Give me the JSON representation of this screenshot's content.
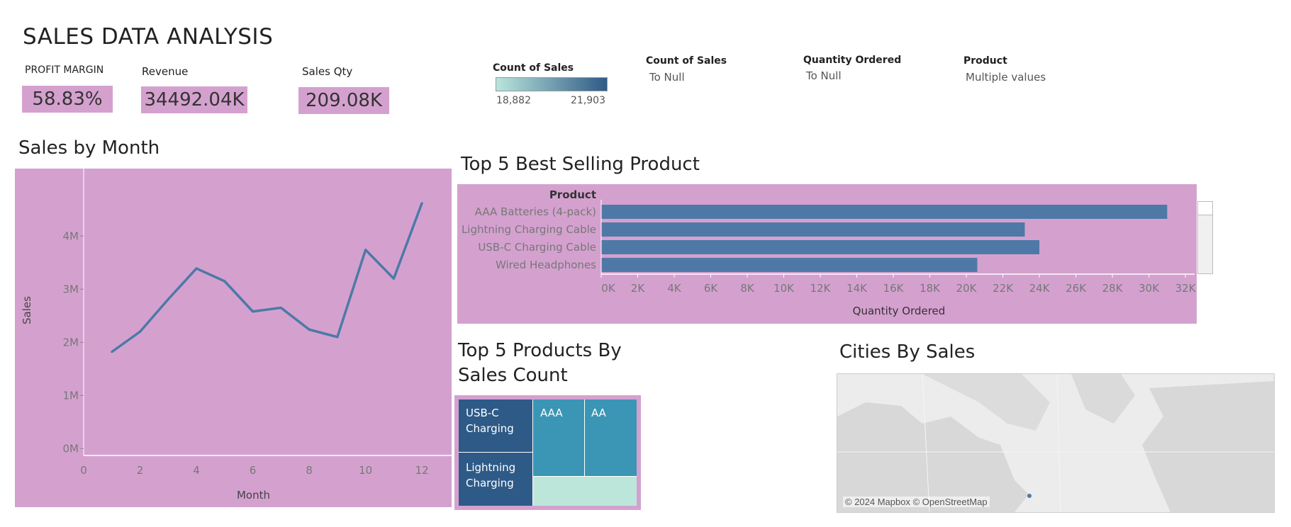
{
  "header": {
    "title": "SALES DATA ANALYSIS"
  },
  "kpis": {
    "profit_margin": {
      "label": "PROFIT MARGIN",
      "value": "58.83%"
    },
    "revenue": {
      "label": "Revenue",
      "value": "34492.04K"
    },
    "sales_qty": {
      "label": "Sales Qty",
      "value": "209.08K"
    }
  },
  "legend": {
    "title": "Count of Sales",
    "min": "18,882",
    "max": "21,903",
    "color_low": "#b9e5dc",
    "color_high": "#2e5a87"
  },
  "filters": [
    {
      "label": "Count of Sales",
      "value": "To Null"
    },
    {
      "label": "Quantity Ordered",
      "value": "To Null"
    },
    {
      "label": "Product",
      "value": "Multiple values"
    }
  ],
  "colors": {
    "panel_pink": "#d4a1cf",
    "line_blue": "#4e79a7",
    "bar_blue": "#4e79a7"
  },
  "sales_by_month": {
    "section_title": "Sales by Month",
    "chart_data": {
      "type": "line",
      "xlabel": "Month",
      "ylabel": "Sales",
      "x": [
        1,
        2,
        3,
        4,
        5,
        6,
        7,
        8,
        9,
        10,
        11,
        12
      ],
      "values": [
        1.82,
        2.2,
        2.81,
        3.39,
        3.15,
        2.58,
        2.65,
        2.24,
        2.1,
        3.74,
        3.2,
        4.62
      ],
      "y_unit": "M",
      "xlim": [
        0,
        12.7
      ],
      "ylim": [
        -0.13,
        4.87
      ],
      "x_ticks": [
        "0",
        "2",
        "4",
        "6",
        "8",
        "10",
        "12"
      ],
      "y_ticks": [
        "0M",
        "1M",
        "2M",
        "3M",
        "4M"
      ]
    }
  },
  "top5_best_selling": {
    "section_title": "Top 5 Best Selling Product",
    "chart_data": {
      "type": "bar",
      "orientation": "horizontal",
      "row_header": "Product",
      "xlabel": "Quantity Ordered",
      "categories": [
        "AAA Batteries (4-pack)",
        "Lightning Charging Cable",
        "USB-C Charging Cable",
        "Wired Headphones"
      ],
      "values": [
        31000,
        23200,
        24000,
        20600
      ],
      "xlim": [
        0,
        32500
      ],
      "x_ticks": [
        "0K",
        "2K",
        "4K",
        "6K",
        "8K",
        "10K",
        "12K",
        "14K",
        "16K",
        "18K",
        "20K",
        "22K",
        "24K",
        "26K",
        "28K",
        "30K",
        "32K"
      ]
    }
  },
  "top5_sales_count": {
    "section_title_line1": "Top 5 Products By",
    "section_title_line2": "Sales Count",
    "chart_data": {
      "type": "treemap",
      "cells": [
        {
          "label_line1": "USB-C",
          "label_line2": "Charging",
          "color": "#2e5a87"
        },
        {
          "label_line1": "Lightning",
          "label_line2": "Charging",
          "color": "#2e5a87"
        },
        {
          "label_line1": "AAA",
          "label_line2": "",
          "color": "#3b95b4"
        },
        {
          "label_line1": "AA",
          "label_line2": "",
          "color": "#3b95b4"
        },
        {
          "label_line1": "",
          "label_line2": "",
          "color": "#bde6da"
        }
      ]
    }
  },
  "cities_by_sales": {
    "section_title": "Cities By Sales",
    "attribution": "© 2024 Mapbox © OpenStreetMap"
  }
}
